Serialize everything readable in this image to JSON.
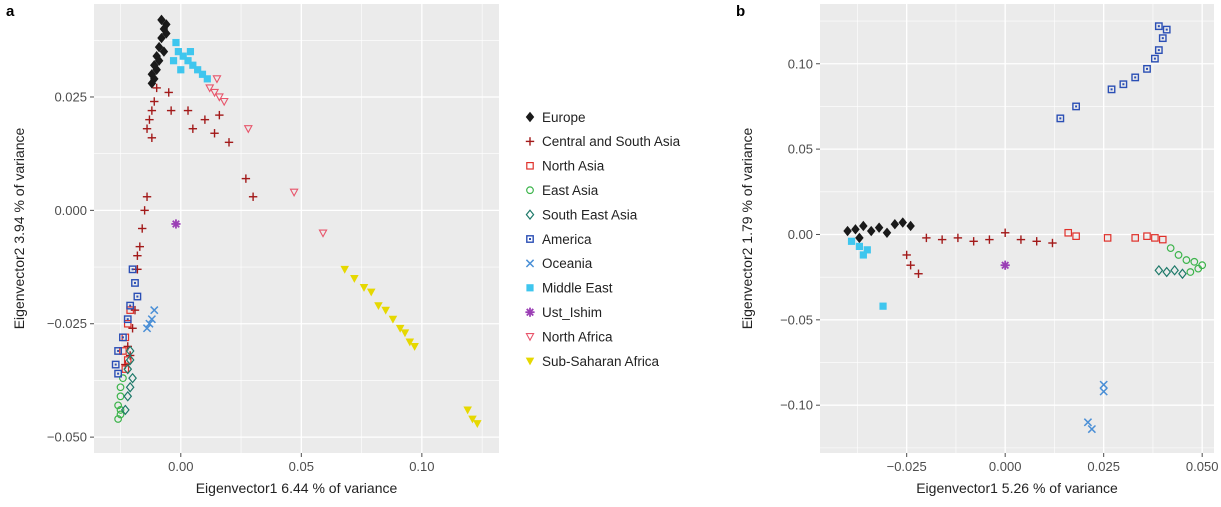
{
  "panel_a_letter": "a",
  "panel_b_letter": "b",
  "colors": {
    "Europe": "#1a1a1a",
    "Central and South Asia": "#a31a1a",
    "North Asia": "#e0302a",
    "East Asia": "#3cb44b",
    "South East Asia": "#1f7a6a",
    "America": "#2b4fb5",
    "Oceania": "#4a8fd6",
    "Middle East": "#3fc6ee",
    "Ust_Ishim": "#9b3fb5",
    "North Africa": "#e8556b",
    "Sub-Saharan Africa": "#e6d800"
  },
  "legend": [
    {
      "label": "Europe",
      "marker": "diamond-filled"
    },
    {
      "label": "Central and South Asia",
      "marker": "plus"
    },
    {
      "label": "North Asia",
      "marker": "square-open"
    },
    {
      "label": "East Asia",
      "marker": "circle-open"
    },
    {
      "label": "South East Asia",
      "marker": "diamond-open"
    },
    {
      "label": "America",
      "marker": "square-dot"
    },
    {
      "label": "Oceania",
      "marker": "cross"
    },
    {
      "label": "Middle East",
      "marker": "square-filled"
    },
    {
      "label": "Ust_Ishim",
      "marker": "star"
    },
    {
      "label": "North Africa",
      "marker": "triangle-down-open"
    },
    {
      "label": "Sub-Saharan Africa",
      "marker": "triangle-down-filled"
    }
  ],
  "chart_data": [
    {
      "type": "scatter",
      "panel": "a",
      "xlabel": "Eigenvector1 6.44 % of variance",
      "ylabel": "Eigenvector2  3.94 % of variance",
      "xlim": [
        -0.036,
        0.132
      ],
      "ylim": [
        -0.0535,
        0.0455
      ],
      "xticks": [
        0.0,
        0.05,
        0.1
      ],
      "xtick_labels": [
        "0.00",
        "0.05",
        "0.10"
      ],
      "yticks": [
        -0.05,
        -0.025,
        0.0,
        0.025
      ],
      "ytick_labels": [
        "−0.050",
        "−0.025",
        "0.000",
        "0.025"
      ],
      "grid": true,
      "legend_position": "right",
      "series": [
        {
          "name": "Europe",
          "marker": "diamond-filled",
          "points": [
            [
              -0.008,
              0.042
            ],
            [
              -0.007,
              0.04
            ],
            [
              -0.008,
              0.038
            ],
            [
              -0.009,
              0.036
            ],
            [
              -0.01,
              0.034
            ],
            [
              -0.011,
              0.032
            ],
            [
              -0.012,
              0.03
            ],
            [
              -0.011,
              0.029
            ],
            [
              -0.012,
              0.028
            ],
            [
              -0.006,
              0.039
            ],
            [
              -0.007,
              0.035
            ],
            [
              -0.009,
              0.033
            ],
            [
              -0.01,
              0.031
            ],
            [
              -0.006,
              0.041
            ]
          ]
        },
        {
          "name": "Central and South Asia",
          "marker": "plus",
          "points": [
            [
              -0.01,
              0.027
            ],
            [
              -0.011,
              0.024
            ],
            [
              -0.012,
              0.022
            ],
            [
              -0.013,
              0.02
            ],
            [
              -0.014,
              0.018
            ],
            [
              -0.012,
              0.016
            ],
            [
              -0.005,
              0.026
            ],
            [
              -0.004,
              0.022
            ],
            [
              0.003,
              0.022
            ],
            [
              0.005,
              0.018
            ],
            [
              0.01,
              0.02
            ],
            [
              0.014,
              0.017
            ],
            [
              0.016,
              0.021
            ],
            [
              0.02,
              0.015
            ],
            [
              0.027,
              0.007
            ],
            [
              0.03,
              0.003
            ],
            [
              -0.014,
              0.003
            ],
            [
              -0.015,
              0.0
            ],
            [
              -0.016,
              -0.004
            ],
            [
              -0.017,
              -0.008
            ],
            [
              -0.018,
              -0.013
            ],
            [
              -0.019,
              -0.022
            ],
            [
              -0.02,
              -0.026
            ],
            [
              -0.022,
              -0.03
            ],
            [
              -0.023,
              -0.034
            ],
            [
              -0.021,
              -0.032
            ],
            [
              -0.018,
              -0.01
            ]
          ]
        },
        {
          "name": "North Asia",
          "marker": "square-open",
          "points": [
            [
              -0.021,
              -0.022
            ],
            [
              -0.022,
              -0.025
            ],
            [
              -0.023,
              -0.028
            ],
            [
              -0.024,
              -0.031
            ],
            [
              -0.022,
              -0.033
            ],
            [
              -0.023,
              -0.035
            ]
          ]
        },
        {
          "name": "East Asia",
          "marker": "circle-open",
          "points": [
            [
              -0.025,
              -0.039
            ],
            [
              -0.025,
              -0.041
            ],
            [
              -0.026,
              -0.043
            ],
            [
              -0.025,
              -0.045
            ],
            [
              -0.026,
              -0.046
            ],
            [
              -0.024,
              -0.037
            ],
            [
              -0.025,
              -0.044
            ]
          ]
        },
        {
          "name": "South East Asia",
          "marker": "diamond-open",
          "points": [
            [
              -0.021,
              -0.033
            ],
            [
              -0.022,
              -0.035
            ],
            [
              -0.02,
              -0.037
            ],
            [
              -0.021,
              -0.039
            ],
            [
              -0.022,
              -0.041
            ],
            [
              -0.023,
              -0.044
            ],
            [
              -0.021,
              -0.031
            ]
          ]
        },
        {
          "name": "America",
          "marker": "square-dot",
          "points": [
            [
              -0.02,
              -0.013
            ],
            [
              -0.019,
              -0.016
            ],
            [
              -0.021,
              -0.021
            ],
            [
              -0.022,
              -0.024
            ],
            [
              -0.024,
              -0.028
            ],
            [
              -0.026,
              -0.031
            ],
            [
              -0.027,
              -0.034
            ],
            [
              -0.026,
              -0.036
            ],
            [
              -0.018,
              -0.019
            ]
          ]
        },
        {
          "name": "Oceania",
          "marker": "cross",
          "points": [
            [
              -0.011,
              -0.022
            ],
            [
              -0.012,
              -0.024
            ],
            [
              -0.013,
              -0.025
            ],
            [
              -0.014,
              -0.026
            ]
          ]
        },
        {
          "name": "Middle East",
          "marker": "square-filled",
          "points": [
            [
              -0.002,
              0.037
            ],
            [
              -0.001,
              0.035
            ],
            [
              0.001,
              0.034
            ],
            [
              0.003,
              0.033
            ],
            [
              0.005,
              0.032
            ],
            [
              0.007,
              0.031
            ],
            [
              0.009,
              0.03
            ],
            [
              0.011,
              0.029
            ],
            [
              -0.003,
              0.033
            ],
            [
              0.0,
              0.031
            ],
            [
              0.004,
              0.035
            ]
          ]
        },
        {
          "name": "Ust_Ishim",
          "marker": "star",
          "points": [
            [
              -0.002,
              -0.003
            ]
          ]
        },
        {
          "name": "North Africa",
          "marker": "triangle-down-open",
          "points": [
            [
              0.012,
              0.027
            ],
            [
              0.014,
              0.026
            ],
            [
              0.016,
              0.025
            ],
            [
              0.018,
              0.024
            ],
            [
              0.015,
              0.029
            ],
            [
              0.028,
              0.018
            ],
            [
              0.047,
              0.004
            ],
            [
              0.059,
              -0.005
            ]
          ]
        },
        {
          "name": "Sub-Saharan Africa",
          "marker": "triangle-down-filled",
          "points": [
            [
              0.068,
              -0.013
            ],
            [
              0.072,
              -0.015
            ],
            [
              0.076,
              -0.017
            ],
            [
              0.079,
              -0.018
            ],
            [
              0.082,
              -0.021
            ],
            [
              0.085,
              -0.022
            ],
            [
              0.088,
              -0.024
            ],
            [
              0.091,
              -0.026
            ],
            [
              0.093,
              -0.027
            ],
            [
              0.095,
              -0.029
            ],
            [
              0.097,
              -0.03
            ],
            [
              0.119,
              -0.044
            ],
            [
              0.121,
              -0.046
            ],
            [
              0.123,
              -0.047
            ]
          ]
        }
      ]
    },
    {
      "type": "scatter",
      "panel": "b",
      "xlabel": "Eigenvector1 5.26 % of variance",
      "ylabel": "Eigenvector2 1.79 % of variance",
      "xlim": [
        -0.047,
        0.053
      ],
      "ylim": [
        -0.128,
        0.135
      ],
      "xticks": [
        -0.025,
        0.0,
        0.025,
        0.05
      ],
      "xtick_labels": [
        "−0.025",
        "0.000",
        "0.025",
        "0.050"
      ],
      "yticks": [
        -0.1,
        -0.05,
        0.0,
        0.05,
        0.1
      ],
      "ytick_labels": [
        "−0.10",
        "−0.05",
        "0.00",
        "0.05",
        "0.10"
      ],
      "grid": true,
      "series": [
        {
          "name": "Europe",
          "marker": "diamond-filled",
          "points": [
            [
              -0.04,
              0.002
            ],
            [
              -0.038,
              0.003
            ],
            [
              -0.036,
              0.005
            ],
            [
              -0.034,
              0.002
            ],
            [
              -0.032,
              0.004
            ],
            [
              -0.03,
              0.001
            ],
            [
              -0.028,
              0.006
            ],
            [
              -0.026,
              0.007
            ],
            [
              -0.024,
              0.005
            ],
            [
              -0.037,
              -0.002
            ]
          ]
        },
        {
          "name": "Central and South Asia",
          "marker": "plus",
          "points": [
            [
              -0.025,
              -0.012
            ],
            [
              -0.024,
              -0.018
            ],
            [
              -0.022,
              -0.023
            ],
            [
              -0.02,
              -0.002
            ],
            [
              -0.016,
              -0.003
            ],
            [
              -0.012,
              -0.002
            ],
            [
              -0.008,
              -0.004
            ],
            [
              -0.004,
              -0.003
            ],
            [
              0.0,
              0.001
            ],
            [
              0.004,
              -0.003
            ],
            [
              0.008,
              -0.004
            ],
            [
              0.012,
              -0.005
            ]
          ]
        },
        {
          "name": "North Asia",
          "marker": "square-open",
          "points": [
            [
              0.016,
              0.001
            ],
            [
              0.018,
              -0.001
            ],
            [
              0.026,
              -0.002
            ],
            [
              0.033,
              -0.002
            ],
            [
              0.036,
              -0.001
            ],
            [
              0.038,
              -0.002
            ],
            [
              0.04,
              -0.003
            ]
          ]
        },
        {
          "name": "East Asia",
          "marker": "circle-open",
          "points": [
            [
              0.042,
              -0.008
            ],
            [
              0.044,
              -0.012
            ],
            [
              0.046,
              -0.015
            ],
            [
              0.048,
              -0.016
            ],
            [
              0.049,
              -0.02
            ],
            [
              0.05,
              -0.018
            ],
            [
              0.047,
              -0.022
            ]
          ]
        },
        {
          "name": "South East Asia",
          "marker": "diamond-open",
          "points": [
            [
              0.039,
              -0.021
            ],
            [
              0.041,
              -0.022
            ],
            [
              0.043,
              -0.021
            ],
            [
              0.045,
              -0.023
            ]
          ]
        },
        {
          "name": "America",
          "marker": "square-dot",
          "points": [
            [
              0.014,
              0.068
            ],
            [
              0.018,
              0.075
            ],
            [
              0.027,
              0.085
            ],
            [
              0.03,
              0.088
            ],
            [
              0.033,
              0.092
            ],
            [
              0.036,
              0.097
            ],
            [
              0.038,
              0.103
            ],
            [
              0.039,
              0.108
            ],
            [
              0.04,
              0.115
            ],
            [
              0.041,
              0.12
            ],
            [
              0.039,
              0.122
            ]
          ]
        },
        {
          "name": "Oceania",
          "marker": "cross",
          "points": [
            [
              0.021,
              -0.11
            ],
            [
              0.022,
              -0.114
            ],
            [
              0.025,
              -0.088
            ],
            [
              0.025,
              -0.092
            ]
          ]
        },
        {
          "name": "Middle East",
          "marker": "square-filled",
          "points": [
            [
              -0.039,
              -0.004
            ],
            [
              -0.037,
              -0.007
            ],
            [
              -0.035,
              -0.009
            ],
            [
              -0.036,
              -0.012
            ],
            [
              -0.031,
              -0.042
            ]
          ]
        },
        {
          "name": "Ust_Ishim",
          "marker": "star",
          "points": [
            [
              0.0,
              -0.018
            ]
          ]
        }
      ]
    }
  ]
}
